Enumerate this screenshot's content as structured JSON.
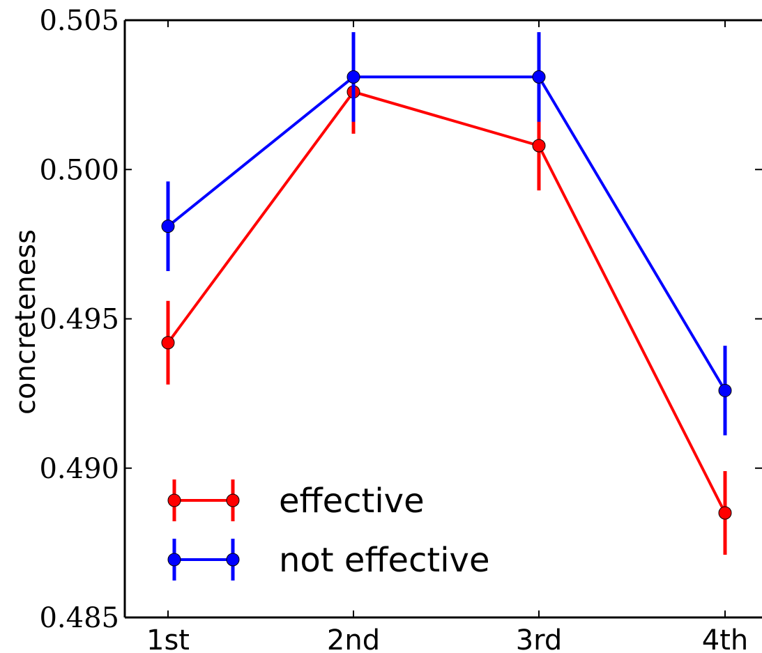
{
  "chart_data": {
    "type": "line",
    "title": "",
    "xlabel": "",
    "ylabel": "concreteness",
    "categories": [
      "1st",
      "2nd",
      "3rd",
      "4th"
    ],
    "ylim": [
      0.485,
      0.505
    ],
    "yticks": [
      "0.485",
      "0.490",
      "0.495",
      "0.500",
      "0.505"
    ],
    "grid": false,
    "legend_position": "lower-left",
    "series": [
      {
        "name": "effective",
        "color": "#ff0000",
        "values": [
          0.4942,
          0.5026,
          0.5008,
          0.4885
        ],
        "errors": [
          0.0014,
          0.0014,
          0.0015,
          0.0014
        ]
      },
      {
        "name": "not effective",
        "color": "#0000ff",
        "values": [
          0.4981,
          0.5031,
          0.5031,
          0.4926
        ],
        "errors": [
          0.0015,
          0.0015,
          0.0015,
          0.0015
        ]
      }
    ]
  }
}
